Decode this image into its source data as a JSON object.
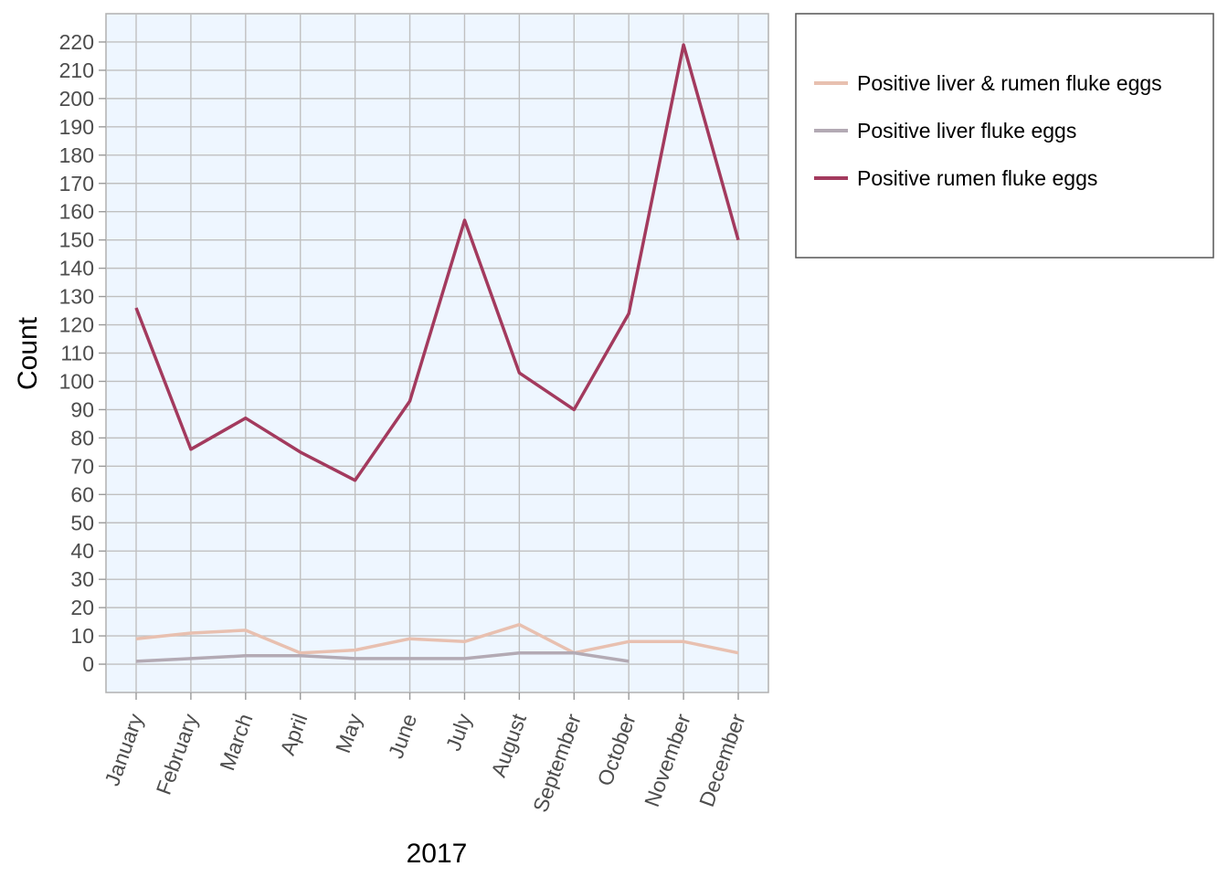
{
  "chart_data": {
    "type": "line",
    "xlabel": "2017",
    "ylabel": "Count",
    "categories": [
      "January",
      "February",
      "March",
      "April",
      "May",
      "June",
      "July",
      "August",
      "September",
      "October",
      "November",
      "December"
    ],
    "y_ticks": [
      0,
      10,
      20,
      30,
      40,
      50,
      60,
      70,
      80,
      90,
      100,
      110,
      120,
      130,
      140,
      150,
      160,
      170,
      180,
      190,
      200,
      210,
      220
    ],
    "ylim": [
      -10,
      230
    ],
    "grid": true,
    "legend_position": "right",
    "panel_background": "#eef6ff",
    "grid_color": "#c0c0c0",
    "series": [
      {
        "name": "Positive liver & rumen fluke eggs",
        "color": "#e8c0b0",
        "values": [
          9,
          11,
          12,
          4,
          5,
          9,
          8,
          14,
          4,
          8,
          8,
          4
        ]
      },
      {
        "name": "Positive liver fluke eggs",
        "color": "#b3aab4",
        "values": [
          1,
          2,
          3,
          3,
          2,
          2,
          2,
          4,
          4,
          1,
          null,
          null
        ]
      },
      {
        "name": "Positive rumen fluke eggs",
        "color": "#a33a5e",
        "values": [
          126,
          76,
          87,
          75,
          65,
          93,
          157,
          103,
          90,
          124,
          219,
          150
        ]
      }
    ]
  }
}
